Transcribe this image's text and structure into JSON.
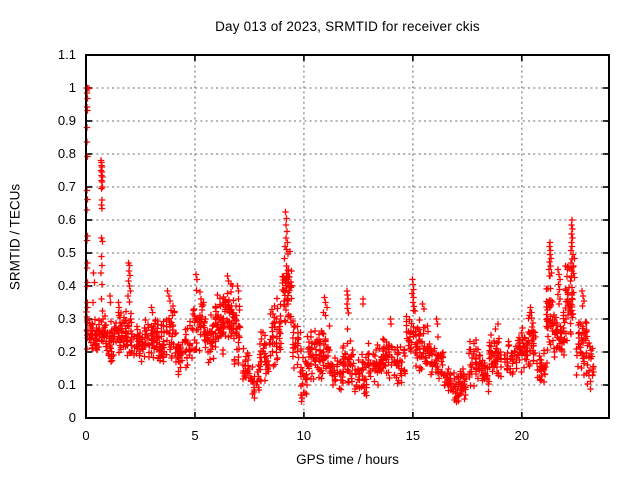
{
  "chart_data": {
    "type": "scatter",
    "title": "Day 013 of 2023, SRMTID for receiver ckis",
    "xlabel": "GPS time / hours",
    "ylabel": "SRMTID / TECUs",
    "xlim": [
      0,
      24
    ],
    "ylim": [
      0,
      1.1
    ],
    "xticks": [
      0,
      5,
      10,
      15,
      20
    ],
    "xtick_labels": [
      "0",
      "5",
      "10",
      "15",
      "20"
    ],
    "yticks": [
      0,
      0.1,
      0.2,
      0.3,
      0.4,
      0.5,
      0.6,
      0.7,
      0.8,
      0.9,
      1.0,
      1.1
    ],
    "ytick_labels": [
      "0",
      "0.1",
      "0.2",
      "0.3",
      "0.4",
      "0.5",
      "0.6",
      "0.7",
      "0.8",
      "0.9",
      "1",
      "1.1"
    ],
    "grid": "dotted",
    "grid_color": "#888888",
    "axis_color": "#000000",
    "marker": "plus",
    "marker_color": "#ff0000",
    "legend": "none",
    "seed": 20230113,
    "outlier_points": [
      [
        0.02,
        1.0
      ],
      [
        0.08,
        1.0
      ],
      [
        0.14,
        0.998
      ],
      [
        0.05,
        0.985
      ],
      [
        0.06,
        0.968
      ],
      [
        0.04,
        0.943
      ],
      [
        0.07,
        0.932
      ],
      [
        0.05,
        0.88
      ],
      [
        0.04,
        0.837
      ],
      [
        0.06,
        0.792
      ],
      [
        0.05,
        0.69
      ],
      [
        0.07,
        0.662
      ],
      [
        0.04,
        0.63
      ],
      [
        0.06,
        0.552
      ],
      [
        0.05,
        0.538
      ],
      [
        0.07,
        0.47
      ],
      [
        0.04,
        0.455
      ],
      [
        0.06,
        0.41
      ],
      [
        0.05,
        0.398
      ],
      [
        0.08,
        0.35
      ],
      [
        0.06,
        0.335
      ],
      [
        0.35,
        0.44
      ],
      [
        0.4,
        0.41
      ],
      [
        0.32,
        0.35
      ],
      [
        0.68,
        0.78
      ],
      [
        0.72,
        0.775
      ],
      [
        0.7,
        0.765
      ],
      [
        0.74,
        0.76
      ],
      [
        0.69,
        0.75
      ],
      [
        0.73,
        0.745
      ],
      [
        0.71,
        0.735
      ],
      [
        0.75,
        0.73
      ],
      [
        0.7,
        0.72
      ],
      [
        0.73,
        0.715
      ],
      [
        0.76,
        0.7
      ],
      [
        0.71,
        0.695
      ],
      [
        0.74,
        0.66
      ],
      [
        0.7,
        0.645
      ],
      [
        0.73,
        0.635
      ],
      [
        0.72,
        0.545
      ],
      [
        0.75,
        0.535
      ],
      [
        0.7,
        0.49
      ],
      [
        0.73,
        0.462
      ],
      [
        0.69,
        0.44
      ],
      [
        0.74,
        0.405
      ],
      [
        0.71,
        0.36
      ],
      [
        0.76,
        0.325
      ],
      [
        1.1,
        0.37
      ],
      [
        1.12,
        0.35
      ],
      [
        1.48,
        0.35
      ],
      [
        1.52,
        0.335
      ],
      [
        1.5,
        0.32
      ],
      [
        1.55,
        0.305
      ],
      [
        1.95,
        0.47
      ],
      [
        2.0,
        0.462
      ],
      [
        1.98,
        0.445
      ],
      [
        2.03,
        0.432
      ],
      [
        1.96,
        0.415
      ],
      [
        2.0,
        0.4
      ],
      [
        2.05,
        0.385
      ],
      [
        1.93,
        0.37
      ],
      [
        2.0,
        0.352
      ],
      [
        3.0,
        0.335
      ],
      [
        3.05,
        0.32
      ],
      [
        3.75,
        0.385
      ],
      [
        3.8,
        0.37
      ],
      [
        3.85,
        0.355
      ],
      [
        5.05,
        0.435
      ],
      [
        5.1,
        0.42
      ],
      [
        6.5,
        0.43
      ],
      [
        6.55,
        0.415
      ],
      [
        6.95,
        0.4
      ],
      [
        7.0,
        0.385
      ],
      [
        9.15,
        0.625
      ],
      [
        9.2,
        0.605
      ],
      [
        9.17,
        0.585
      ],
      [
        9.22,
        0.565
      ],
      [
        9.18,
        0.545
      ],
      [
        9.25,
        0.532
      ],
      [
        9.14,
        0.52
      ],
      [
        9.2,
        0.51
      ],
      [
        9.9,
        0.05
      ],
      [
        9.92,
        0.06
      ],
      [
        9.88,
        0.07
      ],
      [
        10.95,
        0.365
      ],
      [
        11.0,
        0.35
      ],
      [
        11.05,
        0.335
      ],
      [
        10.9,
        0.32
      ],
      [
        11.0,
        0.31
      ],
      [
        11.98,
        0.385
      ],
      [
        12.0,
        0.372
      ],
      [
        12.03,
        0.36
      ],
      [
        11.97,
        0.345
      ],
      [
        12.0,
        0.332
      ],
      [
        12.05,
        0.318
      ],
      [
        12.0,
        0.27
      ],
      [
        12.7,
        0.36
      ],
      [
        12.72,
        0.345
      ],
      [
        13.97,
        0.3
      ],
      [
        14.0,
        0.285
      ],
      [
        14.98,
        0.42
      ],
      [
        15.0,
        0.405
      ],
      [
        15.03,
        0.39
      ],
      [
        14.97,
        0.378
      ],
      [
        15.02,
        0.365
      ],
      [
        15.0,
        0.35
      ],
      [
        15.05,
        0.338
      ],
      [
        15.1,
        0.325
      ],
      [
        15.45,
        0.345
      ],
      [
        15.5,
        0.33
      ],
      [
        16.08,
        0.3
      ],
      [
        16.12,
        0.285
      ],
      [
        17.0,
        0.048
      ],
      [
        16.9,
        0.055
      ],
      [
        17.1,
        0.052
      ],
      [
        16.95,
        0.06
      ],
      [
        18.8,
        0.27
      ],
      [
        18.9,
        0.285
      ],
      [
        20.4,
        0.335
      ],
      [
        20.45,
        0.32
      ],
      [
        20.35,
        0.31
      ],
      [
        21.3,
        0.532
      ],
      [
        21.28,
        0.52
      ],
      [
        21.32,
        0.508
      ],
      [
        21.29,
        0.495
      ],
      [
        21.33,
        0.483
      ],
      [
        21.27,
        0.472
      ],
      [
        21.31,
        0.46
      ],
      [
        21.25,
        0.45
      ],
      [
        21.35,
        0.44
      ],
      [
        21.3,
        0.43
      ],
      [
        21.65,
        0.45
      ],
      [
        21.7,
        0.435
      ],
      [
        21.75,
        0.42
      ],
      [
        21.68,
        0.405
      ],
      [
        21.72,
        0.39
      ],
      [
        21.66,
        0.375
      ],
      [
        21.74,
        0.36
      ],
      [
        21.7,
        0.345
      ],
      [
        22.3,
        0.6
      ],
      [
        22.28,
        0.585
      ],
      [
        22.32,
        0.572
      ],
      [
        22.29,
        0.558
      ],
      [
        22.33,
        0.545
      ],
      [
        22.27,
        0.532
      ],
      [
        22.31,
        0.52
      ],
      [
        22.25,
        0.508
      ],
      [
        22.35,
        0.495
      ],
      [
        22.3,
        0.482
      ],
      [
        22.26,
        0.47
      ],
      [
        22.34,
        0.458
      ],
      [
        22.3,
        0.445
      ],
      [
        22.75,
        0.385
      ],
      [
        22.8,
        0.37
      ],
      [
        22.85,
        0.355
      ],
      [
        22.78,
        0.34
      ]
    ],
    "density_bands": [
      [
        0.0,
        0.3,
        0.19,
        0.34,
        26
      ],
      [
        0.3,
        0.6,
        0.18,
        0.31,
        26
      ],
      [
        0.6,
        0.9,
        0.2,
        0.32,
        26
      ],
      [
        0.9,
        1.3,
        0.16,
        0.3,
        34
      ],
      [
        1.3,
        1.7,
        0.17,
        0.33,
        34
      ],
      [
        1.7,
        2.2,
        0.18,
        0.33,
        40
      ],
      [
        2.2,
        2.7,
        0.16,
        0.28,
        40
      ],
      [
        2.7,
        3.2,
        0.17,
        0.32,
        40
      ],
      [
        3.2,
        3.7,
        0.15,
        0.3,
        40
      ],
      [
        3.7,
        4.1,
        0.16,
        0.36,
        34
      ],
      [
        4.1,
        4.5,
        0.13,
        0.26,
        30
      ],
      [
        4.5,
        4.9,
        0.15,
        0.3,
        32
      ],
      [
        4.9,
        5.4,
        0.17,
        0.42,
        46
      ],
      [
        5.4,
        5.9,
        0.15,
        0.33,
        40
      ],
      [
        5.9,
        6.3,
        0.19,
        0.38,
        44
      ],
      [
        6.3,
        6.8,
        0.21,
        0.42,
        56
      ],
      [
        6.8,
        7.15,
        0.14,
        0.38,
        30
      ],
      [
        7.15,
        7.55,
        0.08,
        0.24,
        26
      ],
      [
        7.55,
        7.95,
        0.05,
        0.18,
        26
      ],
      [
        7.95,
        8.45,
        0.1,
        0.28,
        36
      ],
      [
        8.45,
        9.0,
        0.14,
        0.38,
        46
      ],
      [
        9.0,
        9.45,
        0.27,
        0.52,
        56
      ],
      [
        9.45,
        9.85,
        0.14,
        0.32,
        30
      ],
      [
        9.85,
        10.15,
        0.06,
        0.2,
        24
      ],
      [
        10.15,
        10.65,
        0.1,
        0.28,
        40
      ],
      [
        10.65,
        11.2,
        0.11,
        0.3,
        44
      ],
      [
        11.2,
        11.8,
        0.07,
        0.2,
        40
      ],
      [
        11.8,
        12.3,
        0.09,
        0.25,
        36
      ],
      [
        12.3,
        12.9,
        0.06,
        0.2,
        40
      ],
      [
        12.9,
        13.5,
        0.08,
        0.24,
        40
      ],
      [
        13.5,
        14.1,
        0.1,
        0.28,
        44
      ],
      [
        14.1,
        14.7,
        0.1,
        0.24,
        40
      ],
      [
        14.7,
        15.25,
        0.14,
        0.35,
        42
      ],
      [
        15.25,
        15.8,
        0.13,
        0.3,
        40
      ],
      [
        15.8,
        16.45,
        0.1,
        0.25,
        46
      ],
      [
        16.45,
        17.0,
        0.06,
        0.16,
        40
      ],
      [
        17.0,
        17.55,
        0.05,
        0.15,
        40
      ],
      [
        17.55,
        18.1,
        0.09,
        0.25,
        42
      ],
      [
        18.1,
        18.5,
        0.07,
        0.18,
        30
      ],
      [
        18.5,
        19.2,
        0.11,
        0.26,
        48
      ],
      [
        19.2,
        19.8,
        0.12,
        0.25,
        42
      ],
      [
        19.8,
        20.3,
        0.13,
        0.3,
        46
      ],
      [
        20.3,
        20.7,
        0.14,
        0.33,
        34
      ],
      [
        20.7,
        21.1,
        0.08,
        0.22,
        30
      ],
      [
        21.1,
        21.5,
        0.15,
        0.45,
        44
      ],
      [
        21.5,
        22.0,
        0.14,
        0.36,
        44
      ],
      [
        22.0,
        22.5,
        0.22,
        0.5,
        50
      ],
      [
        22.5,
        23.0,
        0.12,
        0.33,
        44
      ],
      [
        23.0,
        23.3,
        0.07,
        0.24,
        28
      ]
    ]
  }
}
